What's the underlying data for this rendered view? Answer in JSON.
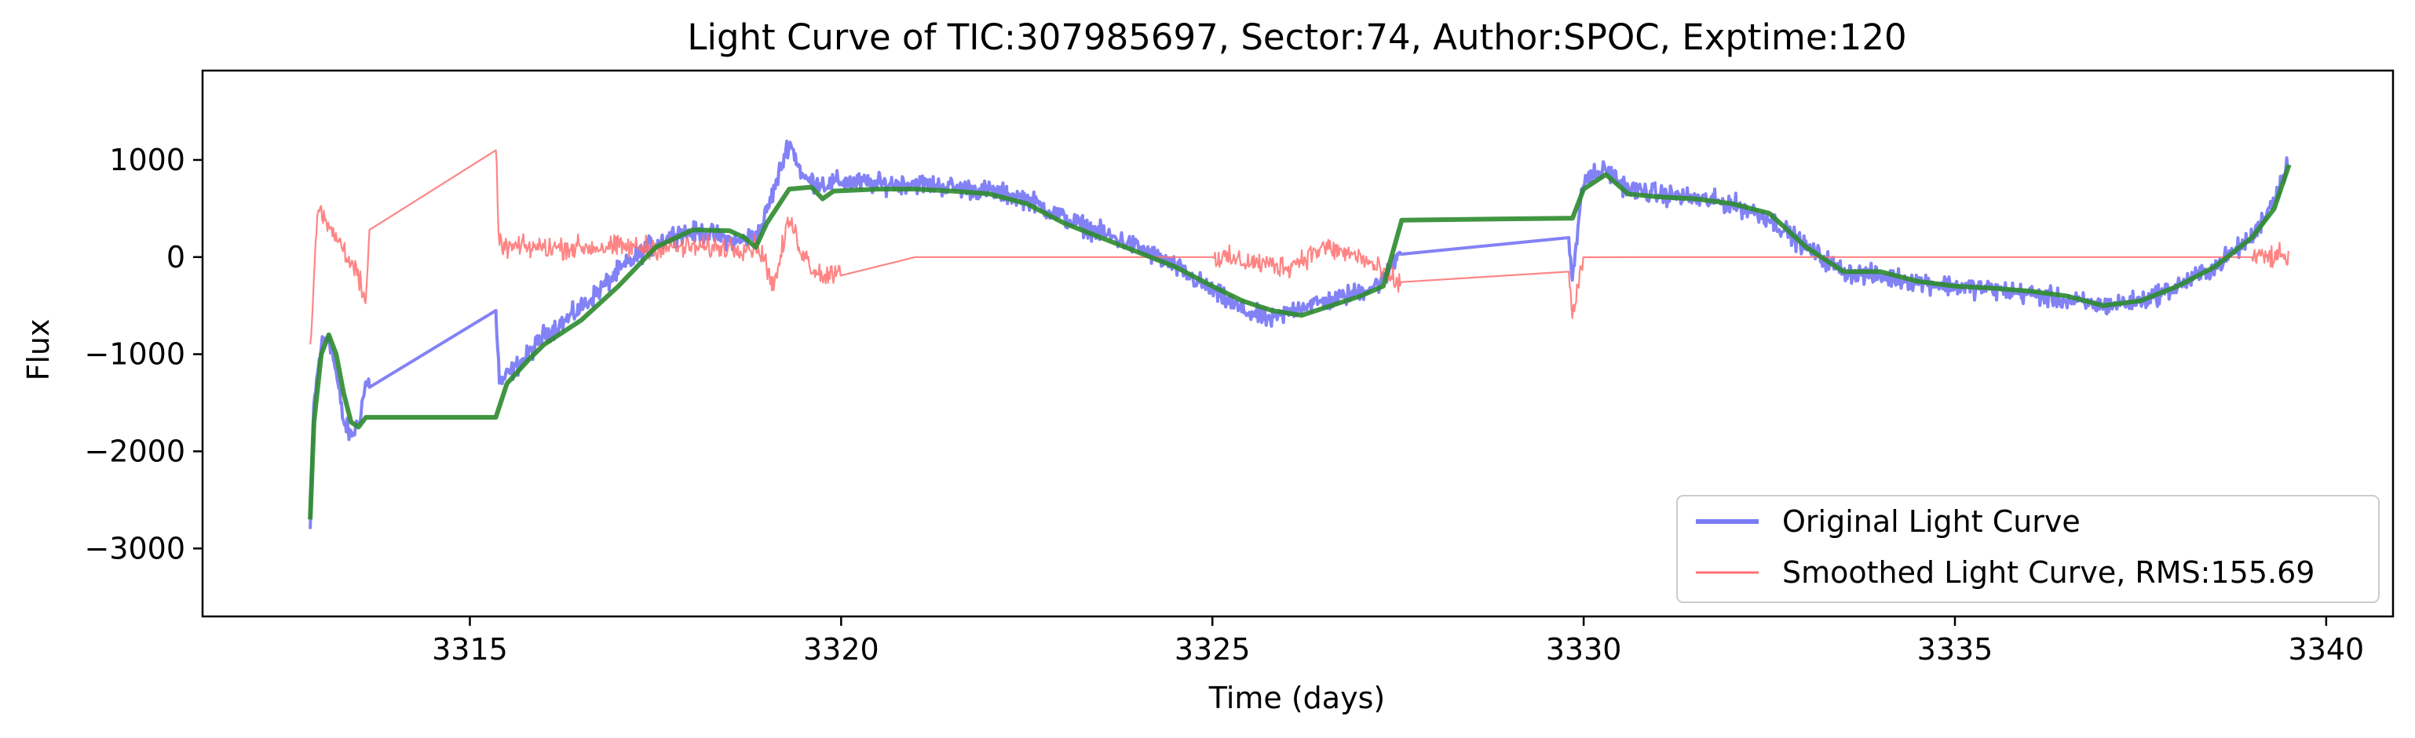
{
  "chart_data": {
    "type": "line",
    "title": "Light Curve of TIC:307985697, Sector:74, Author:SPOC, Exptime:120",
    "xlabel": "Time (days)",
    "ylabel": "Flux",
    "xlim": [
      3311.4,
      3340.9
    ],
    "ylim": [
      -3700,
      1920
    ],
    "x_ticks": [
      3315,
      3320,
      3325,
      3330,
      3335,
      3340
    ],
    "y_ticks": [
      1000,
      0,
      -1000,
      -2000,
      -3000
    ],
    "x_tick_labels": [
      "3315",
      "3320",
      "3325",
      "3330",
      "3335",
      "3340"
    ],
    "y_tick_labels": [
      "1000",
      "0",
      "−1000",
      "−2000",
      "−3000"
    ],
    "grid": false,
    "legend_position": "lower-right",
    "legend": [
      "Original Light Curve",
      "Smoothed Light Curve, RMS:155.69"
    ],
    "series": [
      {
        "name": "Original Light Curve",
        "color": "#7b7bf5",
        "style": "thick-noisy",
        "x": [
          3312.85,
          3312.9,
          3313.0,
          3313.1,
          3313.2,
          3313.3,
          3313.4,
          3313.5,
          3313.6,
          3313.65,
          3315.35,
          3315.4,
          3315.6,
          3315.8,
          3316.0,
          3316.3,
          3316.6,
          3317.0,
          3317.4,
          3317.8,
          3318.2,
          3318.6,
          3318.9,
          3319.1,
          3319.3,
          3319.5,
          3319.8,
          3320.0,
          3320.5,
          3321.0,
          3321.5,
          3322.0,
          3322.5,
          3323.0,
          3323.5,
          3324.0,
          3324.5,
          3325.0,
          3325.4,
          3325.8,
          3326.2,
          3326.6,
          3327.0,
          3327.3,
          3327.55,
          3329.8,
          3329.85,
          3330.0,
          3330.3,
          3330.6,
          3331.0,
          3331.5,
          3332.0,
          3332.5,
          3333.0,
          3333.5,
          3334.0,
          3334.5,
          3335.0,
          3335.5,
          3336.0,
          3336.5,
          3337.0,
          3337.5,
          3338.0,
          3338.5,
          3339.0,
          3339.3,
          3339.5
        ],
        "y": [
          -2800,
          -1500,
          -900,
          -800,
          -1200,
          -1700,
          -1850,
          -1700,
          -1300,
          -1300,
          -550,
          -1300,
          -1150,
          -1000,
          -800,
          -650,
          -450,
          -150,
          100,
          250,
          250,
          150,
          250,
          700,
          1200,
          800,
          750,
          780,
          750,
          760,
          720,
          680,
          600,
          400,
          250,
          100,
          -100,
          -350,
          -550,
          -650,
          -500,
          -450,
          -350,
          -250,
          100,
          200,
          -200,
          800,
          900,
          700,
          650,
          600,
          550,
          400,
          100,
          -150,
          -200,
          -250,
          -300,
          -330,
          -380,
          -450,
          -500,
          -450,
          -300,
          -100,
          200,
          600,
          1000
        ]
      },
      {
        "name": "Smoothed Light Curve, RMS:155.69",
        "color": "#ff7070",
        "style": "thin-noisy",
        "x": [
          3312.85,
          3312.95,
          3313.1,
          3313.3,
          3313.5,
          3313.6,
          3313.65,
          3315.35,
          3315.4,
          3315.6,
          3316.0,
          3316.5,
          3317.0,
          3317.5,
          3318.0,
          3318.5,
          3318.9,
          3319.1,
          3319.3,
          3319.45,
          3319.6,
          3319.8,
          3320.0,
          3321.0,
          3322.0,
          3323.0,
          3324.0,
          3325.0,
          3325.5,
          3326.0,
          3326.5,
          3327.0,
          3327.55,
          3329.8,
          3329.85,
          3330.0,
          3331.0,
          3332.0,
          3333.0,
          3334.0,
          3335.0,
          3336.0,
          3337.0,
          3338.0,
          3339.0,
          3339.5
        ],
        "y": [
          -900,
          500,
          300,
          100,
          -200,
          -550,
          350,
          1100,
          100,
          100,
          100,
          100,
          100,
          100,
          100,
          100,
          100,
          -300,
          400,
          100,
          -100,
          -200,
          -100,
          0,
          0,
          0,
          0,
          0,
          -50,
          -100,
          100,
          0,
          -300,
          -150,
          -600,
          0,
          0,
          0,
          0,
          0,
          0,
          0,
          0,
          0,
          0,
          0
        ]
      },
      {
        "name": "",
        "color": "#2e8b2e",
        "style": "trend",
        "x": [
          3312.85,
          3312.9,
          3313.0,
          3313.1,
          3313.2,
          3313.3,
          3313.4,
          3313.5,
          3313.6,
          3313.65,
          3315.35,
          3315.5,
          3315.8,
          3316.0,
          3316.5,
          3317.0,
          3317.5,
          3318.0,
          3318.5,
          3318.7,
          3318.85,
          3319.0,
          3319.3,
          3319.6,
          3319.75,
          3319.9,
          3320.5,
          3321.0,
          3321.5,
          3322.0,
          3322.5,
          3323.0,
          3323.5,
          3324.0,
          3324.5,
          3325.0,
          3325.4,
          3325.8,
          3326.2,
          3326.6,
          3327.0,
          3327.3,
          3327.55,
          3329.8,
          3329.85,
          3330.0,
          3330.3,
          3330.6,
          3331.0,
          3331.5,
          3332.0,
          3332.5,
          3333.0,
          3333.5,
          3334.0,
          3334.5,
          3335.0,
          3335.5,
          3336.0,
          3336.5,
          3337.0,
          3337.5,
          3338.0,
          3338.5,
          3339.0,
          3339.3,
          3339.5
        ],
        "y": [
          -2700,
          -1700,
          -1000,
          -800,
          -1000,
          -1400,
          -1700,
          -1750,
          -1650,
          -1650,
          -1650,
          -1300,
          -1050,
          -900,
          -650,
          -300,
          100,
          280,
          270,
          200,
          100,
          350,
          700,
          720,
          600,
          680,
          700,
          700,
          680,
          650,
          550,
          350,
          200,
          50,
          -100,
          -300,
          -450,
          -550,
          -600,
          -500,
          -400,
          -300,
          380,
          400,
          400,
          700,
          850,
          650,
          620,
          600,
          550,
          450,
          100,
          -150,
          -150,
          -250,
          -300,
          -320,
          -350,
          -400,
          -500,
          -450,
          -300,
          -100,
          200,
          500,
          950
        ]
      }
    ]
  }
}
